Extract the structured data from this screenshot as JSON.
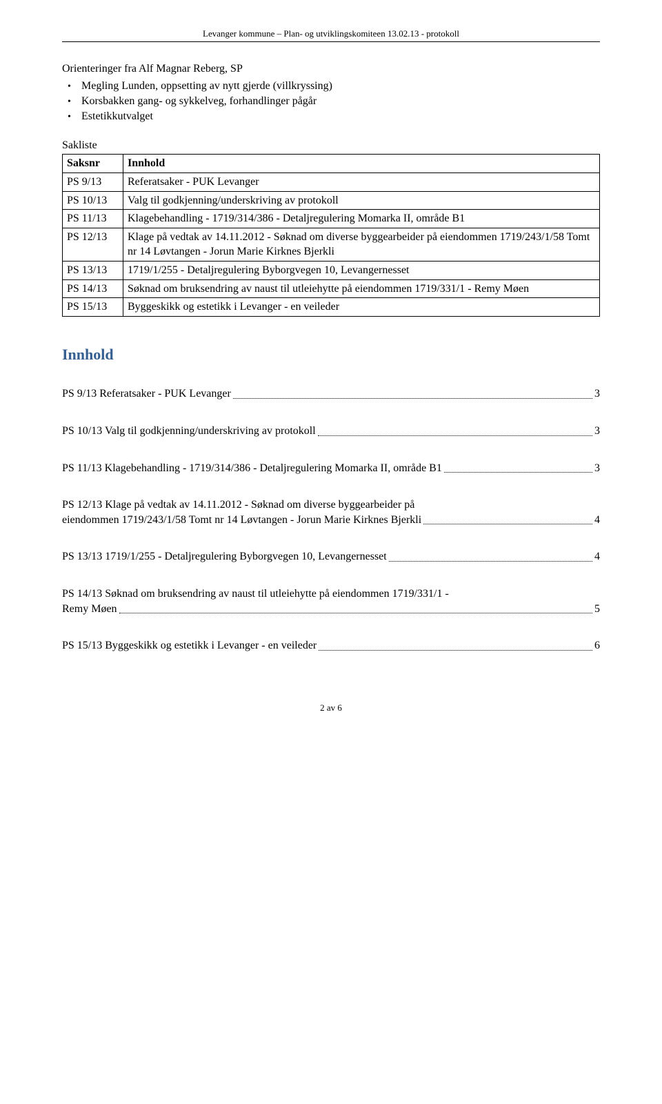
{
  "header": "Levanger kommune – Plan- og utviklingskomiteen 13.02.13 - protokoll",
  "orienteringer": {
    "title": "Orienteringer fra Alf Magnar Reberg, SP",
    "items": [
      "Megling Lunden, oppsetting av nytt gjerde (villkryssing)",
      "Korsbakken gang- og sykkelveg, forhandlinger pågår",
      "Estetikkutvalget"
    ]
  },
  "sakliste": {
    "label": "Sakliste",
    "columns": {
      "saksnr": "Saksnr",
      "innhold": "Innhold"
    },
    "rows": [
      {
        "saksnr": "PS 9/13",
        "innhold": "Referatsaker - PUK Levanger"
      },
      {
        "saksnr": "PS 10/13",
        "innhold": "Valg til godkjenning/underskriving av protokoll"
      },
      {
        "saksnr": "PS 11/13",
        "innhold": "Klagebehandling - 1719/314/386 - Detaljregulering Momarka II, område B1"
      },
      {
        "saksnr": "PS 12/13",
        "innhold": "Klage på vedtak av 14.11.2012 - Søknad om diverse byggearbeider på eiendommen 1719/243/1/58 Tomt nr 14 Løvtangen - Jorun Marie Kirknes Bjerkli"
      },
      {
        "saksnr": "PS 13/13",
        "innhold": "1719/1/255 - Detaljregulering Byborgvegen 10, Levangernesset"
      },
      {
        "saksnr": "PS 14/13",
        "innhold": "Søknad om bruksendring av naust til utleiehytte på eiendommen 1719/331/1 - Remy Møen"
      },
      {
        "saksnr": "PS 15/13",
        "innhold": "Byggeskikk og estetikk i Levanger - en veileder"
      }
    ]
  },
  "toc": {
    "title": "Innhold",
    "title_color": "#365f91",
    "entries": [
      {
        "text": "PS 9/13 Referatsaker - PUK Levanger",
        "page": "3",
        "multiline": false
      },
      {
        "text": "PS 10/13 Valg til godkjenning/underskriving av protokoll",
        "page": "3",
        "multiline": false
      },
      {
        "text": "PS 11/13 Klagebehandling - 1719/314/386 - Detaljregulering Momarka II, område B1",
        "page": "3",
        "multiline": false
      },
      {
        "first_lines": "PS 12/13 Klage på vedtak av 14.11.2012 - Søknad om diverse byggearbeider på",
        "last_line": "eiendommen 1719/243/1/58 Tomt nr 14 Løvtangen - Jorun Marie Kirknes Bjerkli",
        "page": "4",
        "multiline": true
      },
      {
        "text": "PS 13/13 1719/1/255 - Detaljregulering Byborgvegen 10, Levangernesset",
        "page": "4",
        "multiline": false
      },
      {
        "first_lines": "PS 14/13 Søknad om bruksendring av naust til utleiehytte på eiendommen 1719/331/1 -",
        "last_line": "Remy Møen",
        "page": "5",
        "multiline": true
      },
      {
        "text": "PS 15/13 Byggeskikk og estetikk i Levanger - en veileder",
        "page": "6",
        "multiline": false
      }
    ]
  },
  "footer": "2 av 6"
}
